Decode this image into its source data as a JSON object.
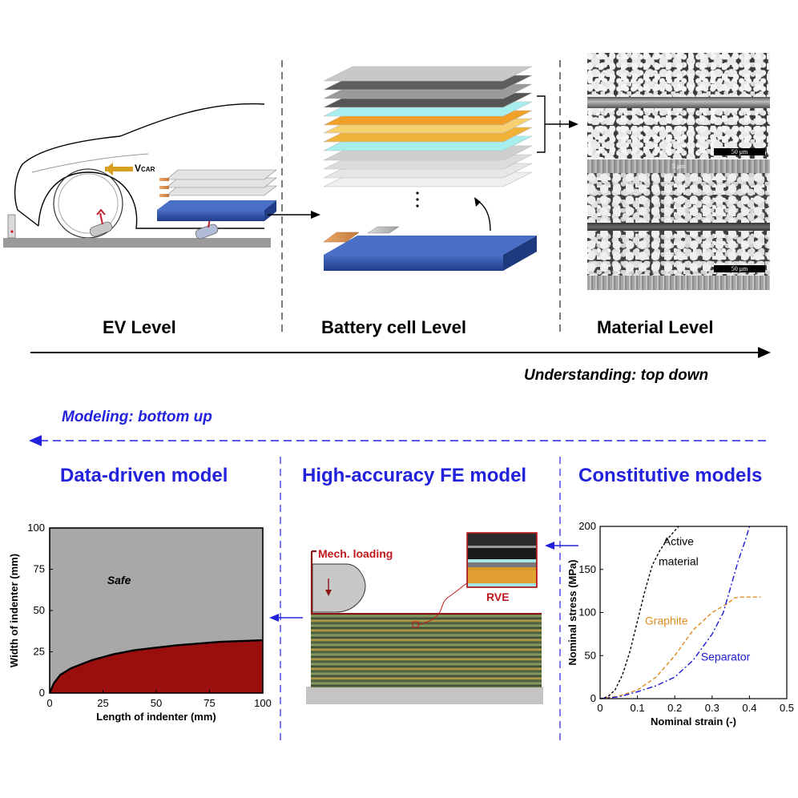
{
  "top": {
    "levels": [
      "EV Level",
      "Battery cell Level",
      "Material Level"
    ],
    "understanding": "Understanding: top down",
    "vcar_main": "V",
    "vcar_sub": "CAR",
    "sem_scale_top": "50 μm",
    "sem_scale_mid": "5 μm",
    "sem_scale_bot": "50 μm"
  },
  "bottom": {
    "modeling": "Modeling: bottom up",
    "titles": [
      "Data-driven model",
      "High-accuracy FE model",
      "Constitutive models"
    ],
    "mech_loading": "Mech. loading",
    "rve": "RVE"
  },
  "colors": {
    "title_blue": "#2222dd",
    "safe_region": "#a8a8a8",
    "unsafe_region": "#9a0e0e",
    "cell_blue": "#2a4b9c",
    "active_material_curve": "#000000",
    "graphite_curve": "#e08a1e",
    "separator_curve": "#1a1ad4",
    "fe_loading_label": "#c0181c"
  },
  "chart_data": [
    {
      "type": "area",
      "title": "",
      "xlabel": "Length of indenter (mm)",
      "ylabel": "Width of indenter (mm)",
      "xlim": [
        0,
        100
      ],
      "ylim": [
        0,
        100
      ],
      "x_ticks": [
        "0",
        "25",
        "50",
        "75",
        "100"
      ],
      "y_ticks": [
        "0",
        "25",
        "50",
        "75",
        "100"
      ],
      "regions": [
        {
          "name": "Safe",
          "label": "Safe"
        },
        {
          "name": "Unsafe",
          "label": ""
        }
      ],
      "boundary": {
        "x": [
          0,
          2,
          5,
          10,
          20,
          30,
          40,
          50,
          60,
          70,
          80,
          90,
          100
        ],
        "y": [
          0,
          6,
          11,
          15,
          20,
          23.5,
          26,
          27.5,
          29,
          30,
          31,
          31.5,
          32
        ]
      },
      "grid": false
    },
    {
      "type": "line",
      "title": "",
      "xlabel": "Nominal strain (-)",
      "ylabel": "Nominal stress (MPa)",
      "xlim": [
        0,
        0.5
      ],
      "ylim": [
        0,
        200
      ],
      "x_ticks": [
        "0",
        "0.1",
        "0.2",
        "0.3",
        "0.4",
        "0.5"
      ],
      "y_ticks": [
        "0",
        "50",
        "100",
        "150",
        "200"
      ],
      "annotations": [
        "Active\nmaterial",
        "Graphite",
        "Separator"
      ],
      "series": [
        {
          "name": "Active material",
          "x": [
            0,
            0.02,
            0.04,
            0.06,
            0.08,
            0.1,
            0.12,
            0.14,
            0.16,
            0.18,
            0.2,
            0.21
          ],
          "y": [
            0,
            2,
            10,
            28,
            55,
            90,
            125,
            155,
            172,
            185,
            195,
            200
          ]
        },
        {
          "name": "Graphite",
          "x": [
            0,
            0.05,
            0.1,
            0.15,
            0.2,
            0.25,
            0.3,
            0.34,
            0.36,
            0.38,
            0.4,
            0.43
          ],
          "y": [
            0,
            3,
            10,
            25,
            50,
            80,
            100,
            110,
            117,
            118,
            118,
            118
          ]
        },
        {
          "name": "Separator",
          "x": [
            0,
            0.05,
            0.1,
            0.15,
            0.2,
            0.25,
            0.3,
            0.33,
            0.35,
            0.37,
            0.39,
            0.4
          ],
          "y": [
            0,
            2,
            8,
            15,
            25,
            45,
            75,
            100,
            130,
            160,
            185,
            200
          ]
        }
      ],
      "grid": false
    }
  ]
}
